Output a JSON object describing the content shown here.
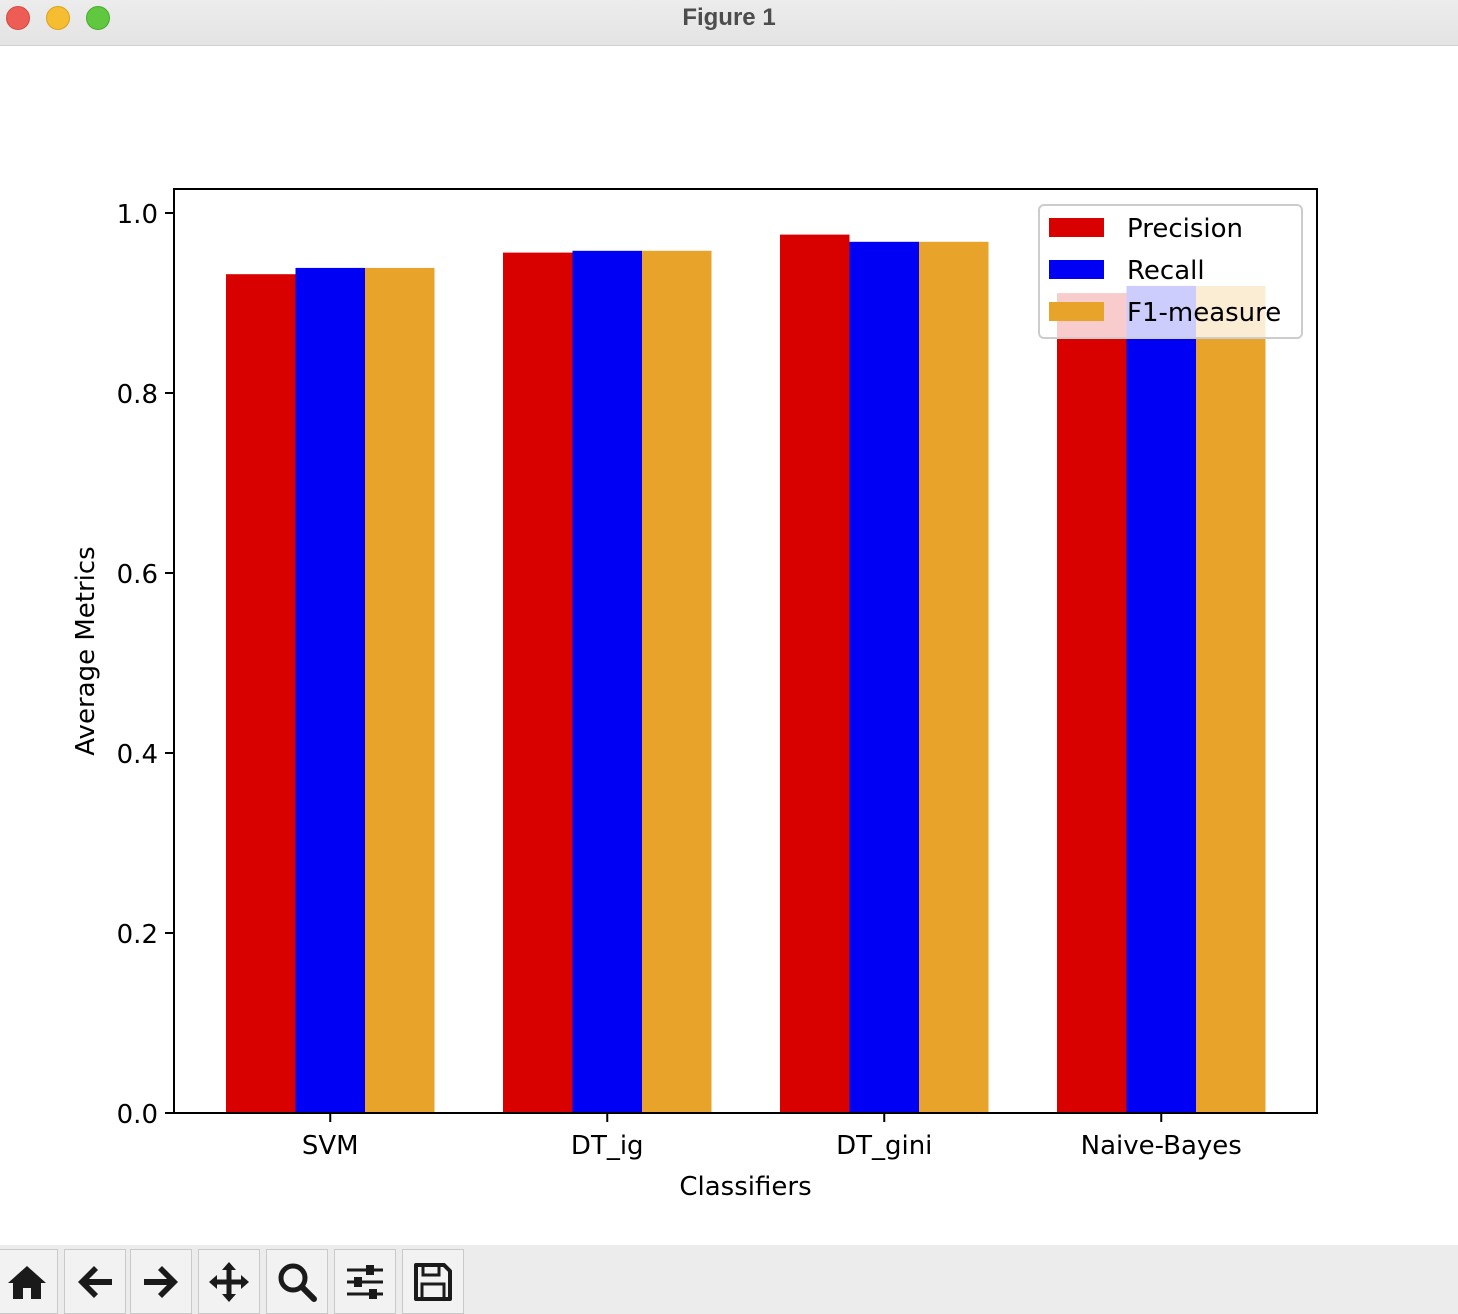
{
  "window": {
    "title": "Figure 1"
  },
  "toolbar": {
    "buttons": [
      {
        "icon": "home-icon"
      },
      {
        "icon": "back-arrow-icon"
      },
      {
        "icon": "forward-arrow-icon"
      },
      {
        "icon": "pan-move-icon"
      },
      {
        "icon": "zoom-magnifier-icon"
      },
      {
        "icon": "configure-subplots-icon"
      },
      {
        "icon": "save-floppy-icon"
      }
    ]
  },
  "chart_data": {
    "type": "bar",
    "title": "",
    "xlabel": "Classifiers",
    "ylabel": "Average Metrics",
    "categories": [
      "SVM",
      "DT_ig",
      "DT_gini",
      "Naive-Bayes"
    ],
    "series": [
      {
        "name": "Precision",
        "color": "#d90000",
        "values": [
          0.932,
          0.956,
          0.976,
          0.911
        ]
      },
      {
        "name": "Recall",
        "color": "#0000f5",
        "values": [
          0.939,
          0.958,
          0.968,
          0.919
        ]
      },
      {
        "name": "F1-measure",
        "color": "#e8a32a",
        "values": [
          0.939,
          0.958,
          0.968,
          0.919
        ]
      }
    ],
    "ylim": [
      0,
      1.0
    ],
    "yticks": [
      "0.0",
      "0.2",
      "0.4",
      "0.6",
      "0.8",
      "1.0"
    ],
    "grid": false,
    "legend_position": "top-right"
  }
}
